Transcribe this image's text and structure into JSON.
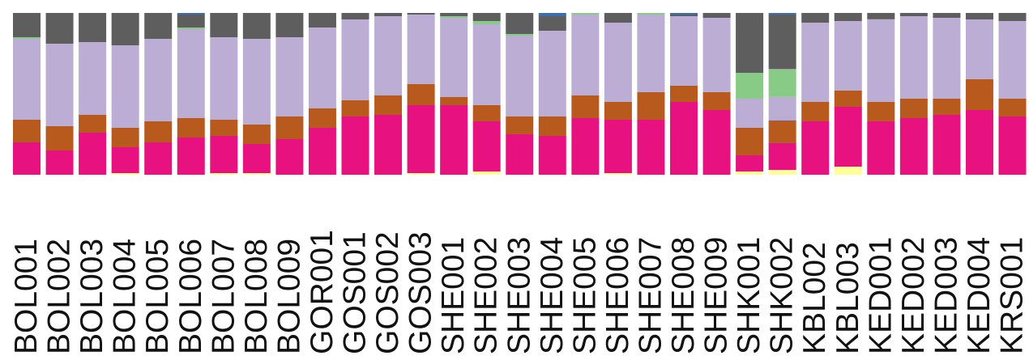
{
  "chart_data": {
    "type": "bar",
    "stacked": true,
    "normalized": true,
    "ylim": [
      0,
      1
    ],
    "grid": false,
    "legend": "none",
    "categories": [
      "BOL001",
      "BOL002",
      "BOL003",
      "BOL004",
      "BOL005",
      "BOL006",
      "BOL007",
      "BOL008",
      "BOL009",
      "GOR001",
      "GOS001",
      "GOS002",
      "GOS003",
      "SHE001",
      "SHE002",
      "SHE003",
      "SHE004",
      "SHE005",
      "SHE006",
      "SHE007",
      "SHE008",
      "SHE009",
      "SHK001",
      "SHK002",
      "KBL002",
      "KBL003",
      "KED001",
      "KED002",
      "KED003",
      "KED004",
      "KRS001"
    ],
    "series": [
      {
        "color": "#ffff99",
        "values": [
          0.0,
          0.0,
          0.0,
          0.01,
          0.0,
          0.0,
          0.01,
          0.01,
          0.0,
          0.0,
          0.0,
          0.0,
          0.01,
          0.0,
          0.02,
          0.0,
          0.0,
          0.0,
          0.01,
          0.0,
          0.0,
          0.0,
          0.02,
          0.03,
          0.0,
          0.05,
          0.0,
          0.0,
          0.0,
          0.0,
          0.0
        ]
      },
      {
        "color": "#e7117f",
        "values": [
          0.2,
          0.15,
          0.26,
          0.16,
          0.2,
          0.23,
          0.23,
          0.18,
          0.22,
          0.29,
          0.36,
          0.37,
          0.42,
          0.43,
          0.31,
          0.25,
          0.24,
          0.35,
          0.33,
          0.34,
          0.45,
          0.4,
          0.1,
          0.17,
          0.33,
          0.37,
          0.34,
          0.35,
          0.37,
          0.4,
          0.36
        ]
      },
      {
        "color": "#b85a1e",
        "values": [
          0.14,
          0.15,
          0.11,
          0.12,
          0.13,
          0.12,
          0.1,
          0.12,
          0.14,
          0.12,
          0.1,
          0.12,
          0.13,
          0.05,
          0.1,
          0.11,
          0.12,
          0.14,
          0.11,
          0.17,
          0.1,
          0.11,
          0.17,
          0.14,
          0.12,
          0.1,
          0.12,
          0.12,
          0.1,
          0.19,
          0.11
        ]
      },
      {
        "color": "#bcadd5",
        "values": [
          0.5,
          0.51,
          0.45,
          0.51,
          0.51,
          0.55,
          0.51,
          0.53,
          0.49,
          0.5,
          0.5,
          0.49,
          0.43,
          0.49,
          0.5,
          0.5,
          0.53,
          0.5,
          0.49,
          0.48,
          0.43,
          0.46,
          0.18,
          0.15,
          0.49,
          0.43,
          0.52,
          0.51,
          0.5,
          0.37,
          0.48
        ]
      },
      {
        "color": "#88cb87",
        "values": [
          0.01,
          0.0,
          0.0,
          0.0,
          0.0,
          0.01,
          0.0,
          0.0,
          0.0,
          0.0,
          0.0,
          0.0,
          0.0,
          0.01,
          0.02,
          0.01,
          0.0,
          0.01,
          0.0,
          0.01,
          0.0,
          0.0,
          0.16,
          0.17,
          0.0,
          0.0,
          0.0,
          0.0,
          0.0,
          0.0,
          0.0
        ]
      },
      {
        "color": "#5e5e5e",
        "values": [
          0.15,
          0.19,
          0.18,
          0.2,
          0.16,
          0.08,
          0.15,
          0.16,
          0.15,
          0.09,
          0.04,
          0.02,
          0.01,
          0.02,
          0.05,
          0.13,
          0.09,
          0.0,
          0.06,
          0.0,
          0.01,
          0.03,
          0.37,
          0.34,
          0.06,
          0.05,
          0.04,
          0.02,
          0.03,
          0.04,
          0.05
        ]
      },
      {
        "color": "#3a6fb0",
        "values": [
          0.0,
          0.0,
          0.0,
          0.0,
          0.0,
          0.01,
          0.0,
          0.0,
          0.0,
          0.0,
          0.0,
          0.0,
          0.0,
          0.0,
          0.0,
          0.0,
          0.02,
          0.0,
          0.0,
          0.0,
          0.01,
          0.0,
          0.0,
          0.01,
          0.0,
          0.0,
          0.0,
          0.0,
          0.0,
          0.0,
          0.0
        ]
      }
    ]
  }
}
